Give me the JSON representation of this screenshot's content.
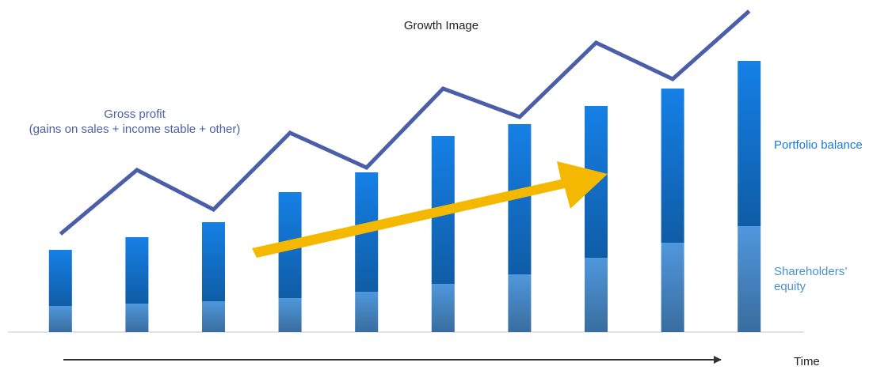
{
  "chart_data": {
    "type": "bar",
    "stacked": true,
    "title": "Growth Image",
    "x_label": "Time",
    "categories": [
      null,
      null,
      null,
      null,
      null,
      null,
      null,
      null,
      null,
      null
    ],
    "ylim": [
      0,
      420
    ],
    "series": [
      {
        "name": "Shareholders’ equity",
        "color": "#4f97dc",
        "values": [
          33,
          36,
          39,
          43,
          51,
          61,
          73,
          94,
          113,
          134
        ]
      },
      {
        "name": "Portfolio balance",
        "color": "#1580e6",
        "values": [
          71,
          84,
          100,
          134,
          151,
          187,
          190,
          192,
          195,
          209
        ]
      },
      {
        "name": "Gross profit\n(gains on sales + income stable + other)",
        "type": "line",
        "color": "#4b5ea8",
        "values": [
          124,
          205,
          155,
          252,
          208,
          308,
          272,
          366,
          320,
          406
        ]
      }
    ]
  }
}
